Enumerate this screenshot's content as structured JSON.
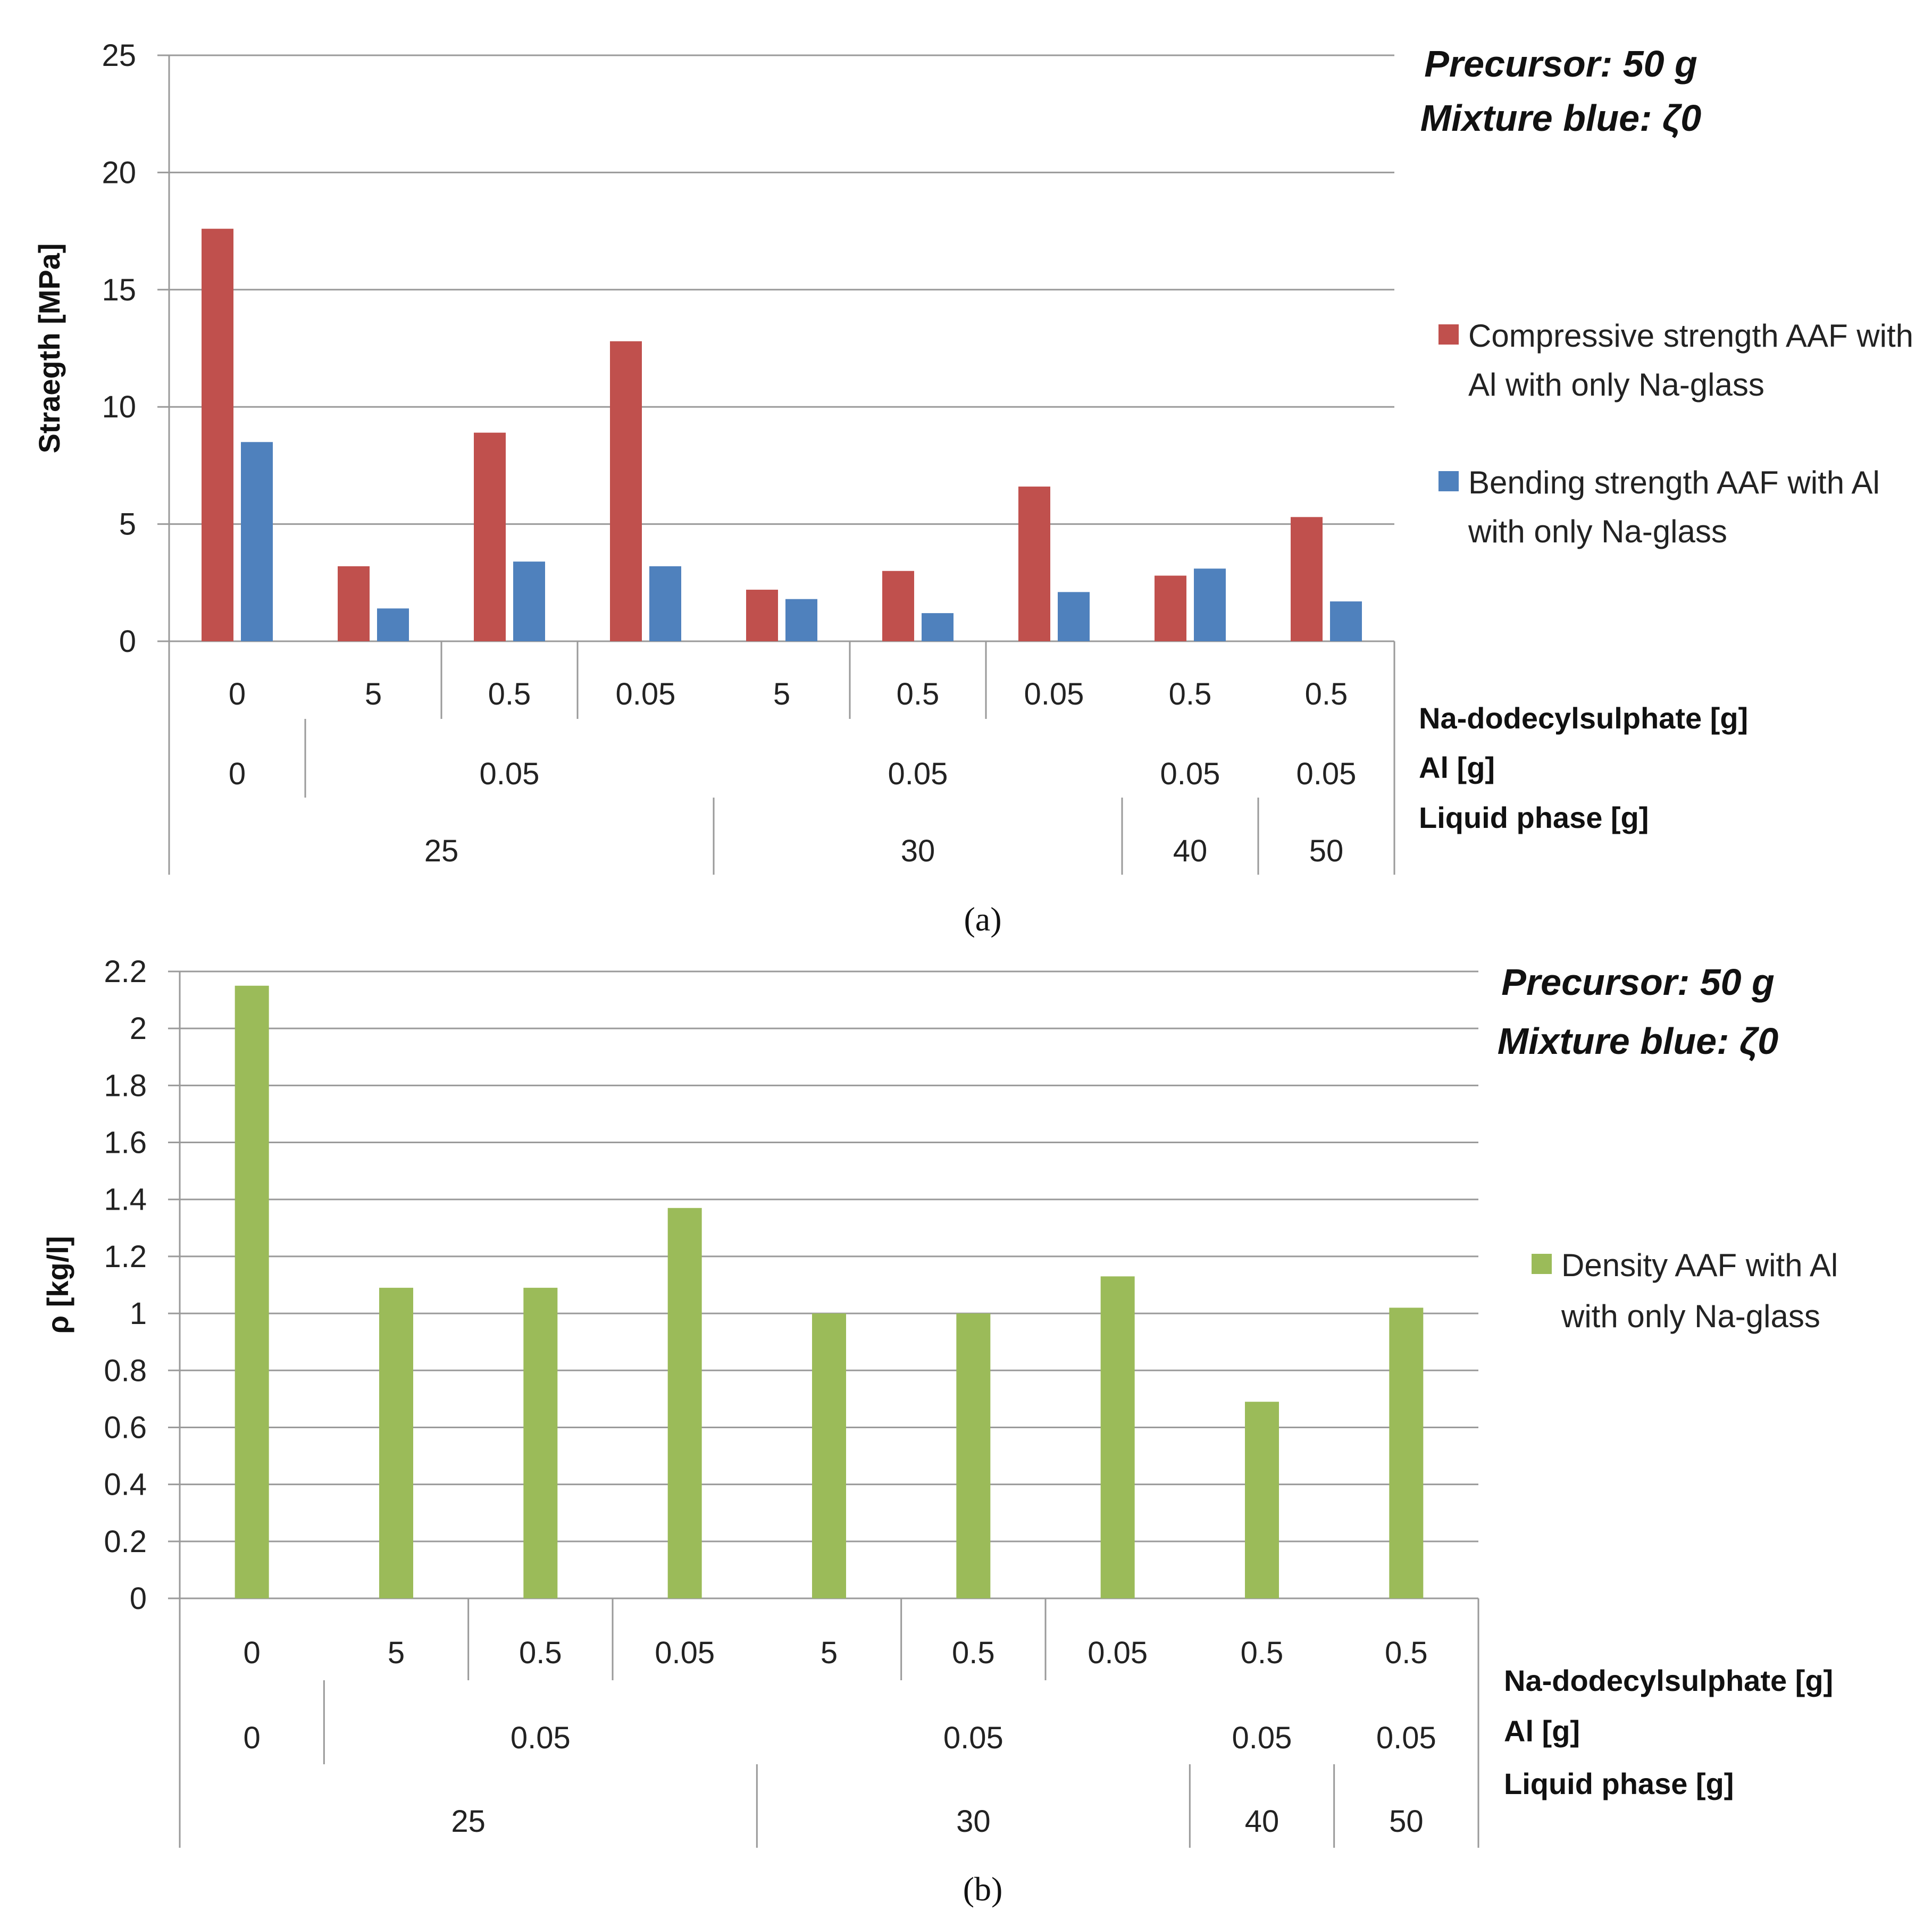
{
  "colors": {
    "compressive": "#c0504d",
    "bending": "#4f81bd",
    "density": "#9bbb59",
    "grid": "#9a9a9a"
  },
  "chart_data": [
    {
      "type": "bar",
      "caption": "(a)",
      "ylabel": "Straegth [MPa]",
      "ylim": [
        0,
        25
      ],
      "yticks": [
        0,
        5,
        10,
        15,
        20,
        25
      ],
      "grid": true,
      "legend_placement": "right",
      "notes": [
        "Precursor: 50 g",
        "Mixture blue: ζ0"
      ],
      "category_levels": [
        {
          "label": "Na-dodecylsulphate [g]",
          "groups": [
            {
              "label": "0",
              "span": 1
            },
            {
              "label": "5",
              "span": 1
            },
            {
              "label": "0.5",
              "span": 1
            },
            {
              "label": "0.05",
              "span": 1
            },
            {
              "label": "5",
              "span": 1
            },
            {
              "label": "0.5",
              "span": 1
            },
            {
              "label": "0.05",
              "span": 1
            },
            {
              "label": "0.5",
              "span": 1
            },
            {
              "label": "0.5",
              "span": 1
            }
          ]
        },
        {
          "label": "Al [g]",
          "groups": [
            {
              "label": "0",
              "span": 1
            },
            {
              "label": "0.05",
              "span": 3
            },
            {
              "label": "0.05",
              "span": 3
            },
            {
              "label": "0.05",
              "span": 1
            },
            {
              "label": "0.05",
              "span": 1
            }
          ]
        },
        {
          "label": "Liquid phase [g]",
          "groups": [
            {
              "label": "25",
              "span": 4
            },
            {
              "label": "30",
              "span": 3
            },
            {
              "label": "40",
              "span": 1
            },
            {
              "label": "50",
              "span": 1
            }
          ]
        }
      ],
      "series": [
        {
          "name": "Compressive  strength AAF with Al with only Na-glass",
          "color_key": "compressive",
          "values": [
            17.6,
            3.2,
            8.9,
            12.8,
            2.2,
            3.0,
            6.6,
            2.8,
            5.3
          ]
        },
        {
          "name": "Bending strength AAF with Al with only Na-glass",
          "color_key": "bending",
          "values": [
            8.5,
            1.4,
            3.4,
            3.2,
            1.8,
            1.2,
            2.1,
            3.1,
            1.7
          ]
        }
      ]
    },
    {
      "type": "bar",
      "caption": "(b)",
      "ylabel": "ρ [kg/l]",
      "ylim": [
        0,
        2.2
      ],
      "yticks": [
        0,
        0.2,
        0.4,
        0.6,
        0.8,
        1,
        1.2,
        1.4,
        1.6,
        1.8,
        2,
        2.2
      ],
      "grid": true,
      "legend_placement": "right",
      "notes": [
        "Precursor: 50 g",
        "Mixture blue: ζ0"
      ],
      "category_levels": [
        {
          "label": "Na-dodecylsulphate [g]",
          "groups": [
            {
              "label": "0",
              "span": 1
            },
            {
              "label": "5",
              "span": 1
            },
            {
              "label": "0.5",
              "span": 1
            },
            {
              "label": "0.05",
              "span": 1
            },
            {
              "label": "5",
              "span": 1
            },
            {
              "label": "0.5",
              "span": 1
            },
            {
              "label": "0.05",
              "span": 1
            },
            {
              "label": "0.5",
              "span": 1
            },
            {
              "label": "0.5",
              "span": 1
            }
          ]
        },
        {
          "label": "Al [g]",
          "groups": [
            {
              "label": "0",
              "span": 1
            },
            {
              "label": "0.05",
              "span": 3
            },
            {
              "label": "0.05",
              "span": 3
            },
            {
              "label": "0.05",
              "span": 1
            },
            {
              "label": "0.05",
              "span": 1
            }
          ]
        },
        {
          "label": "Liquid phase [g]",
          "groups": [
            {
              "label": "25",
              "span": 4
            },
            {
              "label": "30",
              "span": 3
            },
            {
              "label": "40",
              "span": 1
            },
            {
              "label": "50",
              "span": 1
            }
          ]
        }
      ],
      "series": [
        {
          "name": "Density AAF with Al with only Na-glass",
          "color_key": "density",
          "values": [
            2.15,
            1.09,
            1.09,
            1.37,
            1.0,
            1.0,
            1.13,
            0.69,
            1.02
          ]
        }
      ]
    }
  ]
}
